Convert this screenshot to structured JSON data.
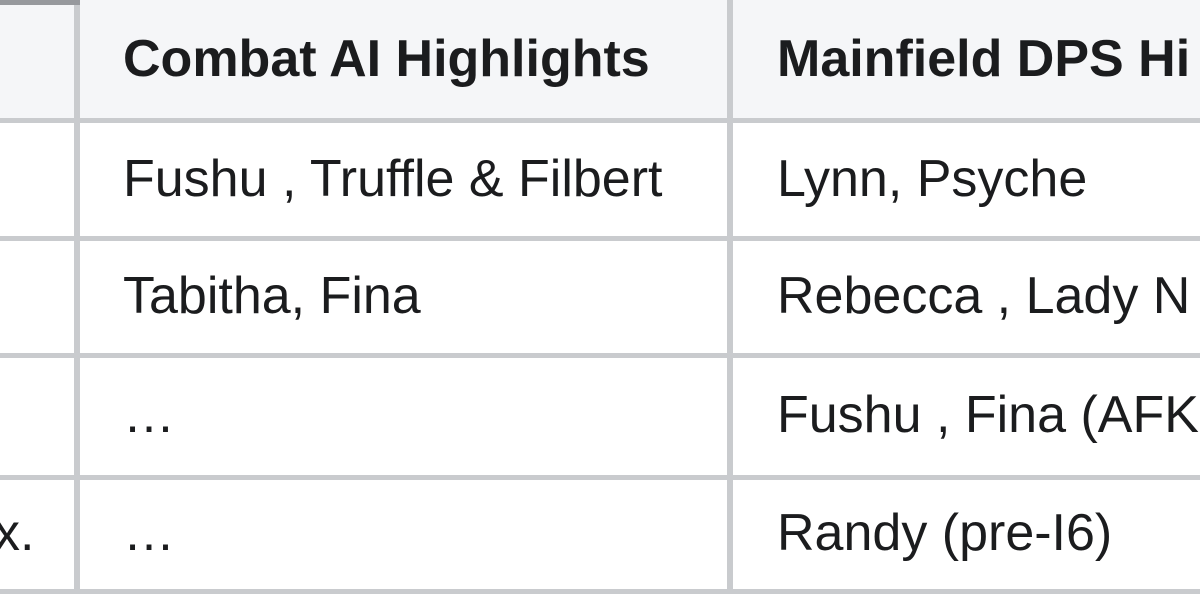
{
  "colors": {
    "header_bg": "#f5f6f8",
    "border": "#c9cbce",
    "border_dark": "#97999d",
    "text": "#1b1c1e",
    "body_bg": "#ffffff"
  },
  "table": {
    "header": {
      "corner": "",
      "combat": "Combat AI Highlights",
      "mainfield": "Mainfield DPS Hi"
    },
    "rows": [
      {
        "label": "",
        "combat": "Fushu , Truffle & Filbert",
        "mainfield": "Lynn, Psyche"
      },
      {
        "label": "",
        "combat": "Tabitha, Fina",
        "mainfield": "Rebecca , Lady N"
      },
      {
        "label": "",
        "combat": "…",
        "mainfield": "Fushu , Fina (AFK"
      },
      {
        "label": "x.",
        "combat": "…",
        "mainfield": "Randy (pre-I6)"
      }
    ]
  }
}
